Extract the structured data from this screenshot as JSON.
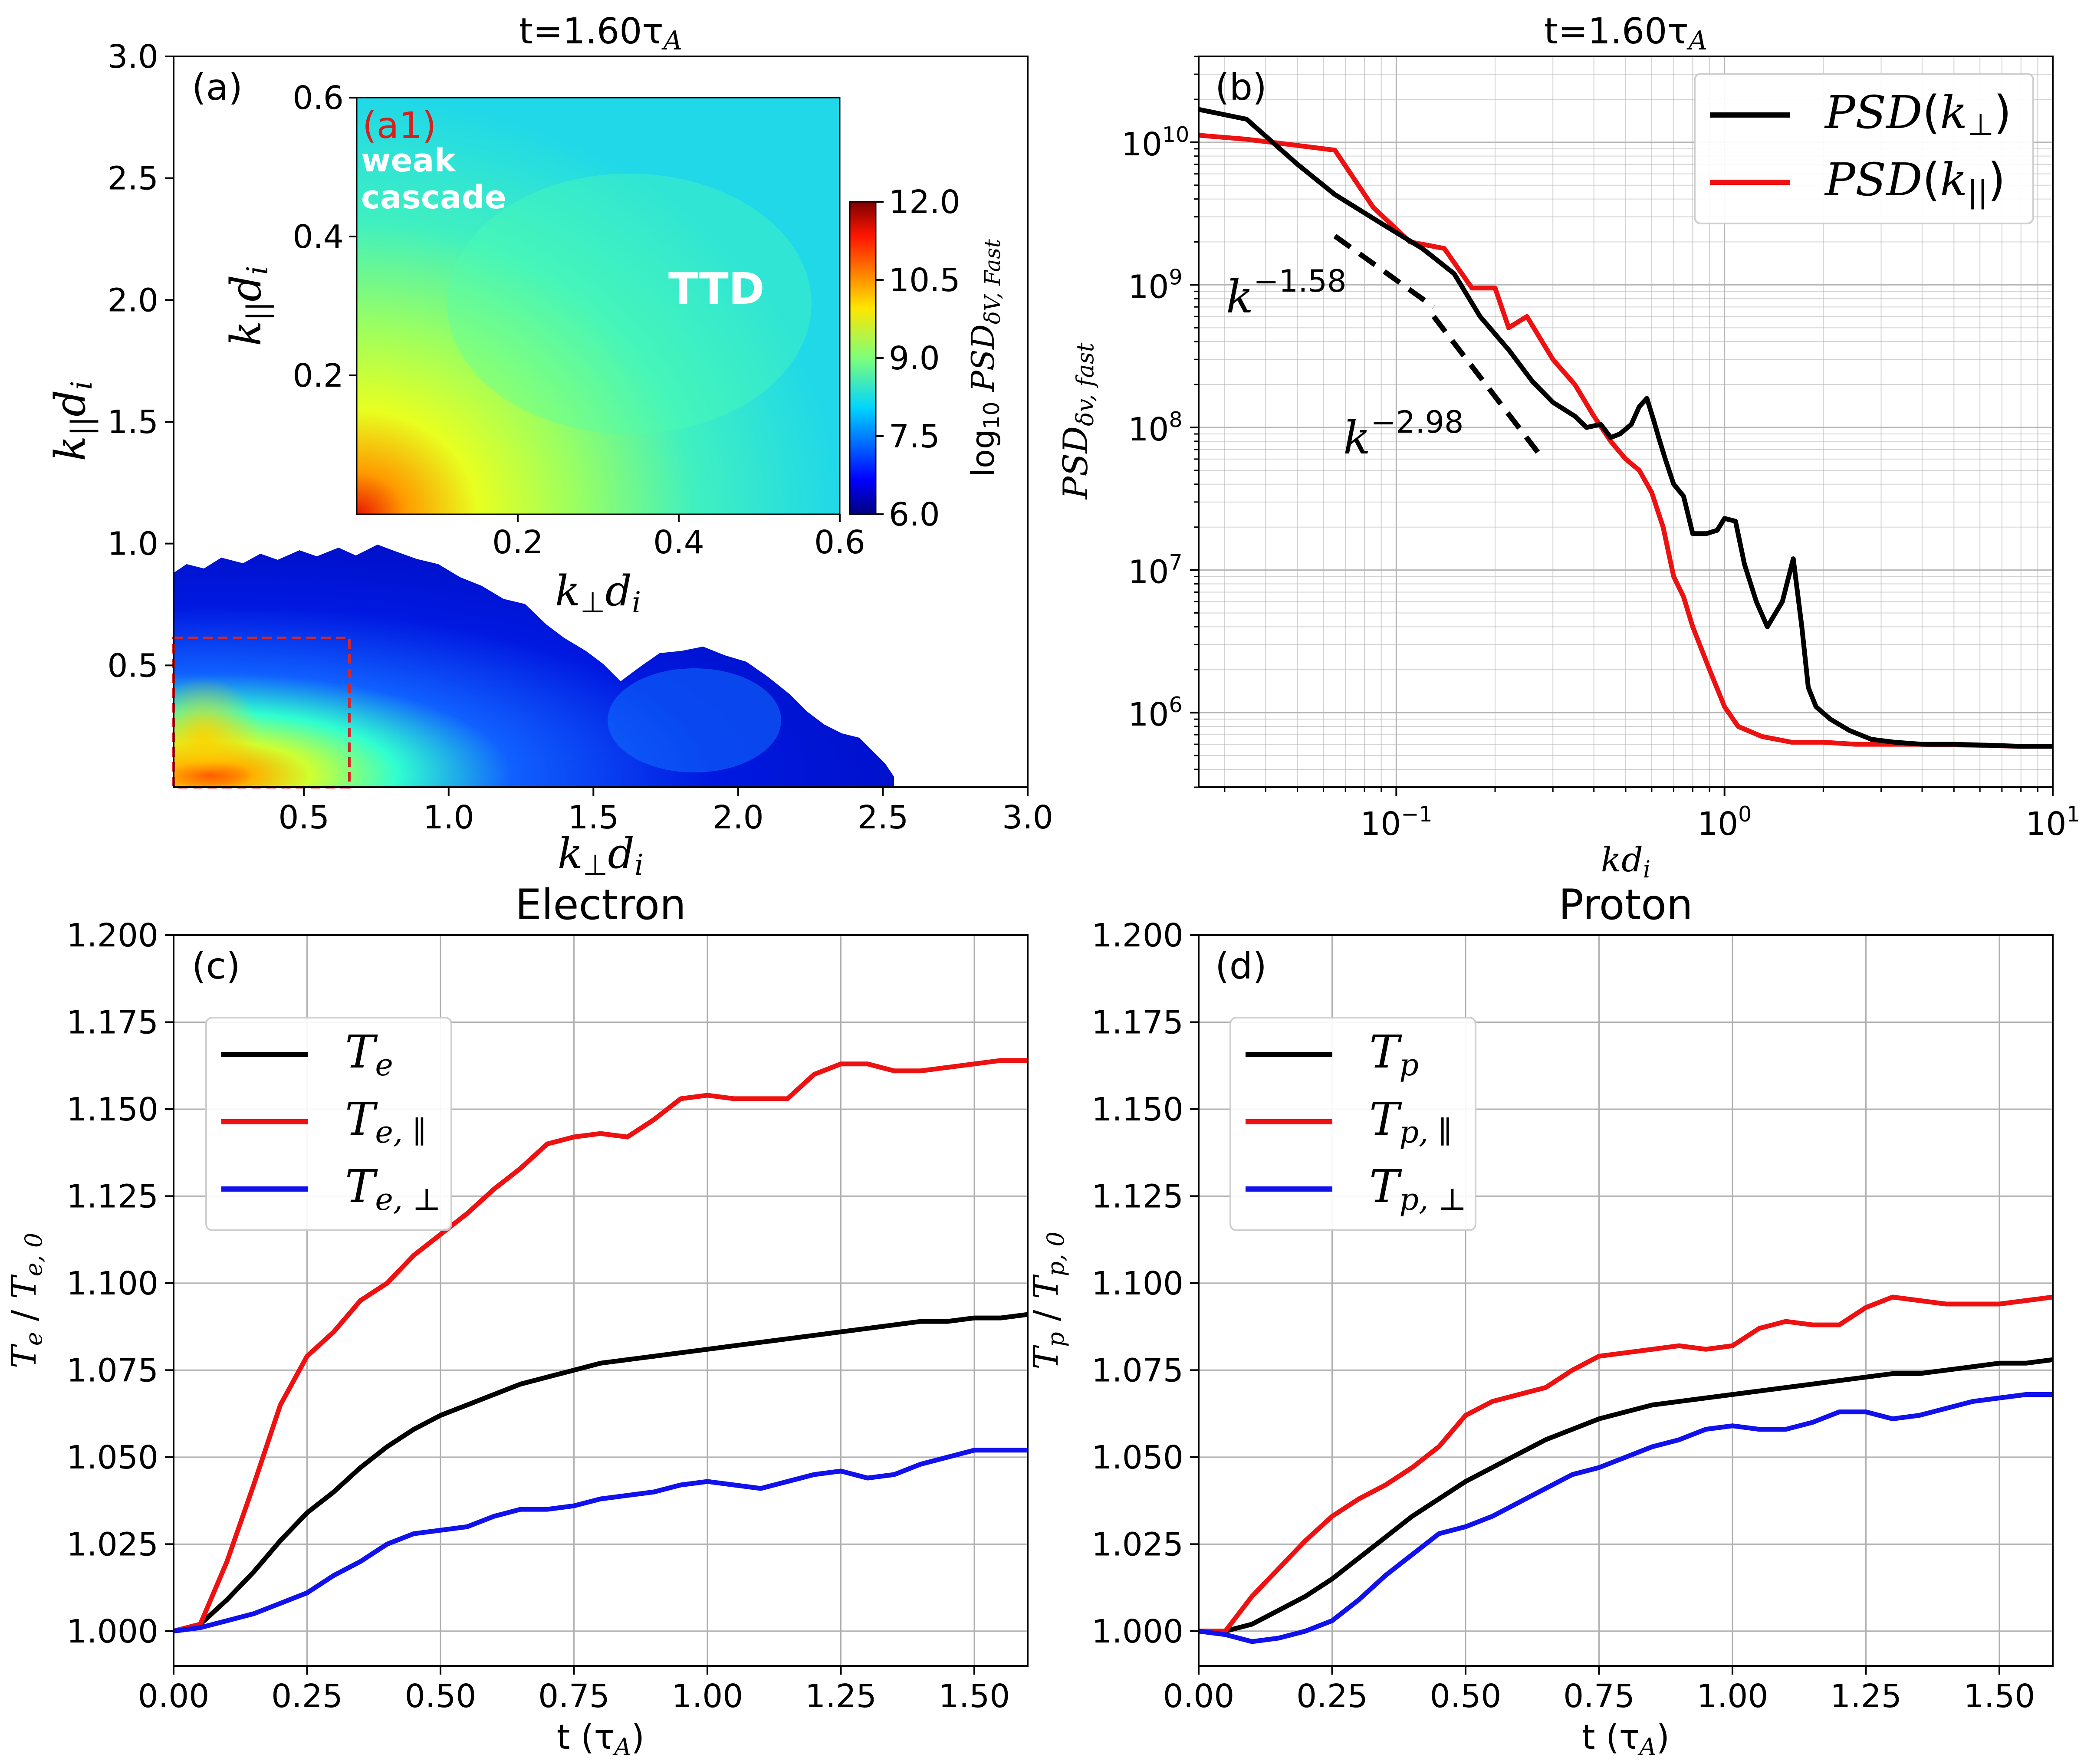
{
  "figure": {
    "panels": {
      "a": {
        "title": "t=1.60τ_A",
        "panel_label": "(a)",
        "xlabel": "k_⊥d_i",
        "ylabel": "k_∥d_i",
        "xticks": [
          "0.5",
          "1.0",
          "1.5",
          "2.0",
          "2.5",
          "3.0"
        ],
        "yticks": [
          "0.5",
          "1.0",
          "1.5",
          "2.0",
          "2.5",
          "3.0"
        ],
        "inset": {
          "label": "(a1)",
          "annotation_left": [
            "weak",
            "cascade"
          ],
          "annotation_right": "TTD",
          "xlabel": "k_⊥d_i",
          "ylabel": "k_∥d_i",
          "xticks": [
            "0.2",
            "0.4",
            "0.6"
          ],
          "yticks": [
            "0.2",
            "0.4",
            "0.6"
          ]
        },
        "colorbar": {
          "label": "log10 PSD_{δV,Fast}",
          "ticks": [
            "6.0",
            "7.5",
            "9.0",
            "10.5",
            "12.0"
          ]
        }
      },
      "b": {
        "title": "t=1.60τ_A",
        "panel_label": "(b)",
        "xlabel": "kd_i",
        "ylabel": "PSD_{δv,fast}",
        "xticks": [
          "10^{-1}",
          "10^{0}",
          "10^{1}"
        ],
        "yticks": [
          "10^{6}",
          "10^{7}",
          "10^{8}",
          "10^{9}",
          "10^{10}"
        ],
        "slope_labels": [
          "k^{-1.58}",
          "k^{-2.98}"
        ],
        "legend": [
          "PSD(k_⊥)",
          "PSD(k_{||})"
        ]
      },
      "c": {
        "title": "Electron",
        "panel_label": "(c)",
        "xlabel": "t (τ_A)",
        "ylabel": "T_e / T_{e,0}",
        "xticks": [
          "0.00",
          "0.25",
          "0.50",
          "0.75",
          "1.00",
          "1.25",
          "1.50"
        ],
        "yticks": [
          "1.000",
          "1.025",
          "1.050",
          "1.075",
          "1.100",
          "1.125",
          "1.150",
          "1.175",
          "1.200"
        ],
        "legend": [
          "T_e",
          "T_{e, ∥}",
          "T_{e, ⊥}"
        ]
      },
      "d": {
        "title": "Proton",
        "panel_label": "(d)",
        "xlabel": "t (τ_A)",
        "ylabel": "T_p / T_{p,0}",
        "xticks": [
          "0.00",
          "0.25",
          "0.50",
          "0.75",
          "1.00",
          "1.25",
          "1.50"
        ],
        "yticks": [
          "1.000",
          "1.025",
          "1.050",
          "1.075",
          "1.100",
          "1.125",
          "1.150",
          "1.175",
          "1.200"
        ],
        "legend": [
          "T_p",
          "T_{p, ∥}",
          "T_{p, ⊥}"
        ]
      }
    }
  },
  "colors": {
    "black": "#000000",
    "red": "#ee1111",
    "blue": "#1111ee",
    "grid": "#b0b0b0",
    "inset_label": "#d62020",
    "box": "#d62728"
  },
  "chart_data": [
    {
      "type": "heatmap",
      "panel": "a",
      "title": "t=1.60τ_A",
      "xlabel": "k_⊥d_i",
      "ylabel": "k_∥d_i",
      "xlim": [
        0.05,
        3.0
      ],
      "ylim": [
        0.0,
        3.0
      ],
      "colorbar_label": "log10 PSD_{δV,Fast}",
      "clim": [
        6.0,
        12.0
      ],
      "colormap": "jet",
      "inset": {
        "xlim": [
          0.0,
          0.6
        ],
        "ylim": [
          0.0,
          0.6
        ],
        "box": [
          [
            0.05,
            0.0
          ],
          [
            0.64,
            0.62
          ]
        ]
      }
    },
    {
      "type": "line",
      "panel": "b",
      "title": "t=1.60τ_A",
      "xlabel": "kd_i",
      "ylabel": "PSD_{δv,fast}",
      "xscale": "log",
      "yscale": "log",
      "xlim": [
        0.025,
        10
      ],
      "ylim": [
        300000,
        40000000000
      ],
      "grid": true,
      "legend_position": "top-right",
      "series": [
        {
          "name": "PSD(k_⊥)",
          "color": "#000000",
          "x": [
            0.025,
            0.035,
            0.05,
            0.065,
            0.09,
            0.12,
            0.15,
            0.18,
            0.22,
            0.26,
            0.3,
            0.35,
            0.38,
            0.42,
            0.45,
            0.48,
            0.52,
            0.55,
            0.58,
            0.61,
            0.63,
            0.66,
            0.7,
            0.75,
            0.8,
            0.88,
            0.95,
            1.0,
            1.08,
            1.15,
            1.25,
            1.35,
            1.5,
            1.62,
            1.72,
            1.8,
            1.9,
            2.1,
            2.4,
            2.8,
            3.3,
            4.0,
            5.0,
            6.5,
            8.0,
            10.0
          ],
          "y": [
            17000000000.0,
            14500000000.0,
            7000000000.0,
            4300000000.0,
            2700000000.0,
            1800000000.0,
            1200000000.0,
            600000000.0,
            350000000.0,
            210000000.0,
            150000000.0,
            120000000.0,
            100000000.0,
            105000000.0,
            85000000.0,
            90000000.0,
            105000000.0,
            140000000.0,
            160000000.0,
            110000000.0,
            85000000.0,
            60000000.0,
            40000000.0,
            33000000.0,
            18000000.0,
            18000000.0,
            19000000.0,
            23000000.0,
            22000000.0,
            11000000.0,
            6000000.0,
            4000000.0,
            6000000.0,
            12000000.0,
            4000000.0,
            1500000.0,
            1100000.0,
            900000.0,
            750000.0,
            650000.0,
            620000.0,
            600000.0,
            600000.0,
            590000.0,
            580000.0,
            580000.0
          ]
        },
        {
          "name": "PSD(k_{||})",
          "color": "#ee1111",
          "x": [
            0.025,
            0.035,
            0.05,
            0.065,
            0.085,
            0.11,
            0.14,
            0.17,
            0.2,
            0.22,
            0.25,
            0.3,
            0.35,
            0.4,
            0.45,
            0.5,
            0.55,
            0.6,
            0.65,
            0.7,
            0.75,
            0.8,
            0.9,
            1.0,
            1.1,
            1.3,
            1.6,
            2.0,
            2.5,
            3.0,
            4.0,
            6.0,
            8.0,
            10.0
          ],
          "y": [
            11200000000.0,
            10500000000.0,
            9500000000.0,
            8800000000.0,
            3500000000.0,
            2000000000.0,
            1800000000.0,
            950000000.0,
            950000000.0,
            500000000.0,
            600000000.0,
            300000000.0,
            200000000.0,
            120000000.0,
            80000000.0,
            60000000.0,
            50000000.0,
            35000000.0,
            20000000.0,
            9000000.0,
            6500000.0,
            4000000.0,
            2000000.0,
            1100000.0,
            800000.0,
            680000.0,
            620000.0,
            620000.0,
            600000.0,
            600000.0,
            600000.0,
            590000.0,
            580000.0,
            580000.0
          ]
        }
      ],
      "fit_lines": [
        {
          "label": "k^{-1.58}",
          "x": [
            0.065,
            0.13
          ],
          "y": [
            2200000000.0,
            700000000.0
          ]
        },
        {
          "label": "k^{-2.98}",
          "x": [
            0.13,
            0.28
          ],
          "y": [
            600000000.0,
            60000000.0
          ]
        }
      ]
    },
    {
      "type": "line",
      "panel": "c",
      "title": "Electron",
      "xlabel": "t (τ_A)",
      "ylabel": "T_e / T_{e,0}",
      "xlim": [
        0.0,
        1.6
      ],
      "ylim": [
        0.99,
        1.2
      ],
      "grid": true,
      "legend_position": "top-left",
      "x": [
        0.0,
        0.05,
        0.1,
        0.15,
        0.2,
        0.25,
        0.3,
        0.35,
        0.4,
        0.45,
        0.5,
        0.55,
        0.6,
        0.65,
        0.7,
        0.75,
        0.8,
        0.85,
        0.9,
        0.95,
        1.0,
        1.05,
        1.1,
        1.15,
        1.2,
        1.25,
        1.3,
        1.35,
        1.4,
        1.45,
        1.5,
        1.55,
        1.6
      ],
      "series": [
        {
          "name": "T_e",
          "color": "#000000",
          "values": [
            1.0,
            1.002,
            1.009,
            1.017,
            1.026,
            1.034,
            1.04,
            1.047,
            1.053,
            1.058,
            1.062,
            1.065,
            1.068,
            1.071,
            1.073,
            1.075,
            1.077,
            1.078,
            1.079,
            1.08,
            1.081,
            1.082,
            1.083,
            1.084,
            1.085,
            1.086,
            1.087,
            1.088,
            1.089,
            1.089,
            1.09,
            1.09,
            1.091
          ]
        },
        {
          "name": "T_{e, ∥}",
          "color": "#ee1111",
          "values": [
            1.0,
            1.002,
            1.02,
            1.042,
            1.065,
            1.079,
            1.086,
            1.095,
            1.1,
            1.108,
            1.114,
            1.12,
            1.127,
            1.133,
            1.14,
            1.142,
            1.143,
            1.142,
            1.147,
            1.153,
            1.154,
            1.153,
            1.153,
            1.153,
            1.16,
            1.163,
            1.163,
            1.161,
            1.161,
            1.162,
            1.163,
            1.164,
            1.164
          ]
        },
        {
          "name": "T_{e, ⊥}",
          "color": "#1111ee",
          "values": [
            1.0,
            1.001,
            1.003,
            1.005,
            1.008,
            1.011,
            1.016,
            1.02,
            1.025,
            1.028,
            1.029,
            1.03,
            1.033,
            1.035,
            1.035,
            1.036,
            1.038,
            1.039,
            1.04,
            1.042,
            1.043,
            1.042,
            1.041,
            1.043,
            1.045,
            1.046,
            1.044,
            1.045,
            1.048,
            1.05,
            1.052,
            1.052,
            1.052
          ]
        }
      ]
    },
    {
      "type": "line",
      "panel": "d",
      "title": "Proton",
      "xlabel": "t (τ_A)",
      "ylabel": "T_p / T_{p,0}",
      "xlim": [
        0.0,
        1.6
      ],
      "ylim": [
        0.99,
        1.2
      ],
      "grid": true,
      "legend_position": "top-left",
      "x": [
        0.0,
        0.05,
        0.1,
        0.15,
        0.2,
        0.25,
        0.3,
        0.35,
        0.4,
        0.45,
        0.5,
        0.55,
        0.6,
        0.65,
        0.7,
        0.75,
        0.8,
        0.85,
        0.9,
        0.95,
        1.0,
        1.05,
        1.1,
        1.15,
        1.2,
        1.25,
        1.3,
        1.35,
        1.4,
        1.45,
        1.5,
        1.55,
        1.6
      ],
      "series": [
        {
          "name": "T_p",
          "color": "#000000",
          "values": [
            1.0,
            1.0,
            1.002,
            1.006,
            1.01,
            1.015,
            1.021,
            1.027,
            1.033,
            1.038,
            1.043,
            1.047,
            1.051,
            1.055,
            1.058,
            1.061,
            1.063,
            1.065,
            1.066,
            1.067,
            1.068,
            1.069,
            1.07,
            1.071,
            1.072,
            1.073,
            1.074,
            1.074,
            1.075,
            1.076,
            1.077,
            1.077,
            1.078
          ]
        },
        {
          "name": "T_{p, ∥}",
          "color": "#ee1111",
          "values": [
            1.0,
            1.0,
            1.01,
            1.018,
            1.026,
            1.033,
            1.038,
            1.042,
            1.047,
            1.053,
            1.062,
            1.066,
            1.068,
            1.07,
            1.075,
            1.079,
            1.08,
            1.081,
            1.082,
            1.081,
            1.082,
            1.087,
            1.089,
            1.088,
            1.088,
            1.093,
            1.096,
            1.095,
            1.094,
            1.094,
            1.094,
            1.095,
            1.096
          ]
        },
        {
          "name": "T_{p, ⊥}",
          "color": "#1111ee",
          "values": [
            1.0,
            0.999,
            0.997,
            0.998,
            1.0,
            1.003,
            1.009,
            1.016,
            1.022,
            1.028,
            1.03,
            1.033,
            1.037,
            1.041,
            1.045,
            1.047,
            1.05,
            1.053,
            1.055,
            1.058,
            1.059,
            1.058,
            1.058,
            1.06,
            1.063,
            1.063,
            1.061,
            1.062,
            1.064,
            1.066,
            1.067,
            1.068,
            1.068
          ]
        }
      ]
    }
  ]
}
